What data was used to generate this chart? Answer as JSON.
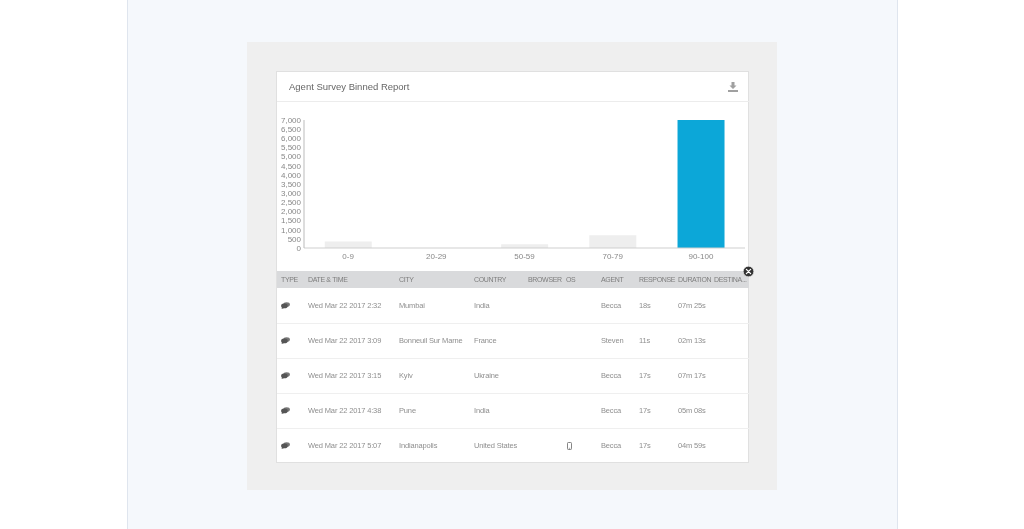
{
  "chart_data": [
    {
      "type": "bar",
      "title": "Agent Survey Binned Report",
      "categories": [
        "0-9",
        "20-29",
        "50-59",
        "70-79",
        "90-100"
      ],
      "values": [
        350,
        0,
        200,
        700,
        7000
      ],
      "colors": [
        "#eeeeee",
        "#eeeeee",
        "#eeeeee",
        "#eeeeee",
        "#0ca7d8"
      ],
      "ylim": [
        0,
        7000
      ],
      "yticks": [
        0,
        500,
        {
          "value": 1000,
          "label": "1,000"
        },
        {
          "value": 1500,
          "label": "1,500"
        },
        {
          "value": 2000,
          "label": "2,000"
        },
        {
          "value": 2500,
          "label": "2,500"
        },
        {
          "value": 3000,
          "label": "3,000"
        },
        {
          "value": 3500,
          "label": "3,500"
        },
        {
          "value": 4000,
          "label": "4,000"
        },
        {
          "value": 4500,
          "label": "4,500"
        },
        {
          "value": 5000,
          "label": "5,000"
        },
        {
          "value": 5500,
          "label": "5,500"
        },
        {
          "value": 6000,
          "label": "6,000"
        },
        {
          "value": 6500,
          "label": "6,500"
        },
        {
          "value": 7000,
          "label": "7,000"
        }
      ]
    },
    {
      "type": "other",
      "categories": [
        "TYPE",
        "DATE & TIME",
        "CITY",
        "COUNTRY",
        "BROWSER",
        "OS",
        "AGENT",
        "RESPONSE",
        "DURATION",
        "DESTINA..."
      ],
      "cell_labels": [
        [
          null,
          "Wed Mar 22 2017 2:32",
          "Mumbai",
          "India",
          null,
          null,
          "Becca",
          "18s",
          "07m 25s",
          null
        ],
        [
          null,
          "Wed Mar 22 2017 3:09",
          "Bonneuil Sur Marne",
          "France",
          null,
          null,
          "Steven",
          "11s",
          "02m 13s",
          null
        ],
        [
          null,
          "Wed Mar 22 2017 3:15",
          "Kyiv",
          "Ukraine",
          null,
          null,
          "Becca",
          "17s",
          "07m 17s",
          null
        ],
        [
          null,
          "Wed Mar 22 2017 4:38",
          "Pune",
          "India",
          null,
          null,
          "Becca",
          "17s",
          "05m 08s",
          null
        ],
        [
          null,
          "Wed Mar 22 2017 5:07",
          "Indianapolis",
          "United States",
          null,
          null,
          "Becca",
          "17s",
          "04m 59s",
          null
        ]
      ]
    }
  ]
}
